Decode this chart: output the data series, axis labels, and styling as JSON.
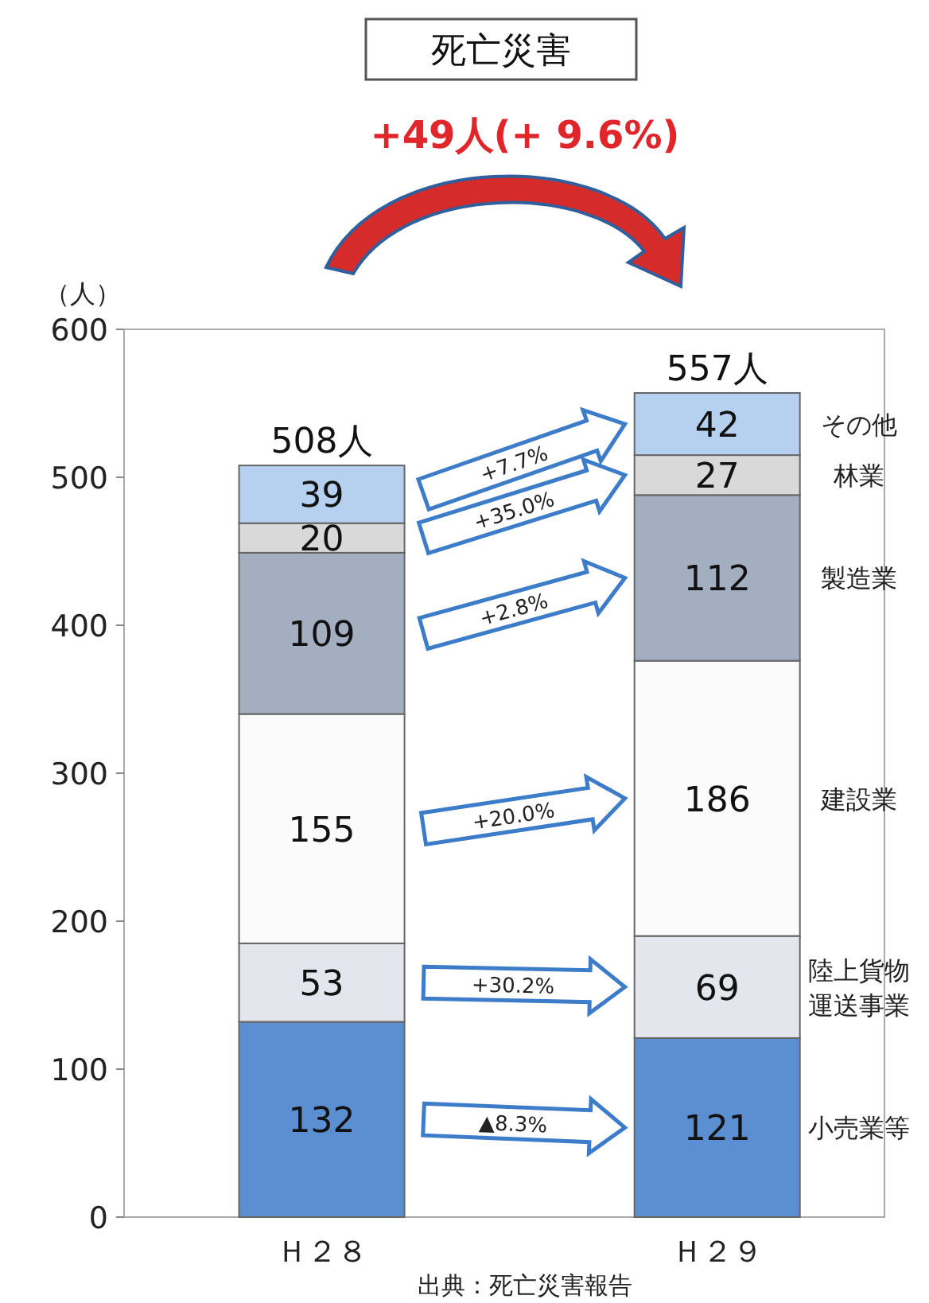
{
  "chart_data": {
    "type": "bar",
    "stacked": true,
    "title": "死亡災害",
    "subtitle": "+49人(+ 9.6%)",
    "ylabel": "（人）",
    "categories": [
      "Ｈ２８",
      "Ｈ２９"
    ],
    "series": [
      {
        "name": "小売業等",
        "color": "#5b8fd1",
        "values": [
          132,
          121
        ]
      },
      {
        "name": "陸上貨物運送事業",
        "color": "#e3e7ed",
        "values": [
          53,
          69
        ]
      },
      {
        "name": "建設業",
        "color": "#fbfbfb",
        "values": [
          155,
          186
        ]
      },
      {
        "name": "製造業",
        "color": "#a3aec0",
        "values": [
          109,
          112
        ]
      },
      {
        "name": "林業",
        "color": "#d9d9d9",
        "values": [
          20,
          27
        ]
      },
      {
        "name": "その他",
        "color": "#b5d1ef",
        "values": [
          39,
          42
        ]
      }
    ],
    "totals": [
      "508人",
      "557人"
    ],
    "data_labels": true,
    "ylim": [
      0,
      600
    ],
    "yticks": [
      0,
      100,
      200,
      300,
      400,
      500,
      600
    ],
    "grid": false,
    "annotations": [
      "+7.7%",
      "+35.0%",
      "+2.8%",
      "+20.0%",
      "+30.2%",
      "▲8.3%",
      "出典：死亡災害報告"
    ]
  }
}
